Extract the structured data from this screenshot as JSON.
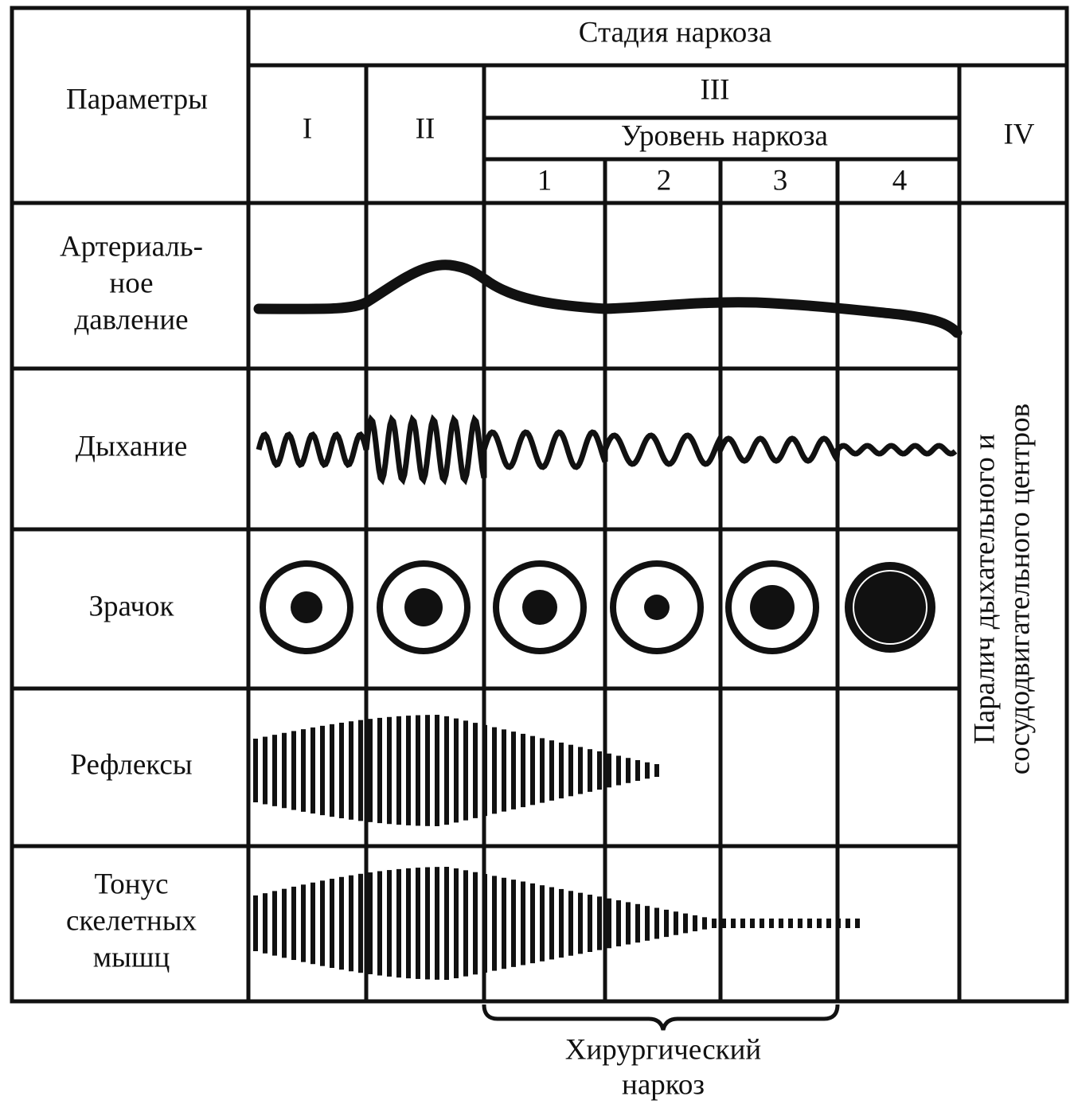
{
  "header": {
    "parameters": "Параметры",
    "stage_title": "Стадия наркоза",
    "stages": [
      "I",
      "II",
      "III",
      "IV"
    ],
    "level_title": "Уровень наркоза",
    "levels": [
      "1",
      "2",
      "3",
      "4"
    ]
  },
  "rows": [
    {
      "lines": [
        "Артериаль-",
        "ное",
        "давление"
      ]
    },
    {
      "lines": [
        "Дыхание"
      ]
    },
    {
      "lines": [
        "Зрачок"
      ]
    },
    {
      "lines": [
        "Рефлексы"
      ]
    },
    {
      "lines": [
        "Тонус",
        "скелетных",
        "мышц"
      ]
    }
  ],
  "side_note": {
    "lines": [
      "Паралич дыхательного и",
      "сосудодвигательного центров"
    ]
  },
  "bracket_label": {
    "lines": [
      "Хирургический",
      "наркоз"
    ]
  }
}
